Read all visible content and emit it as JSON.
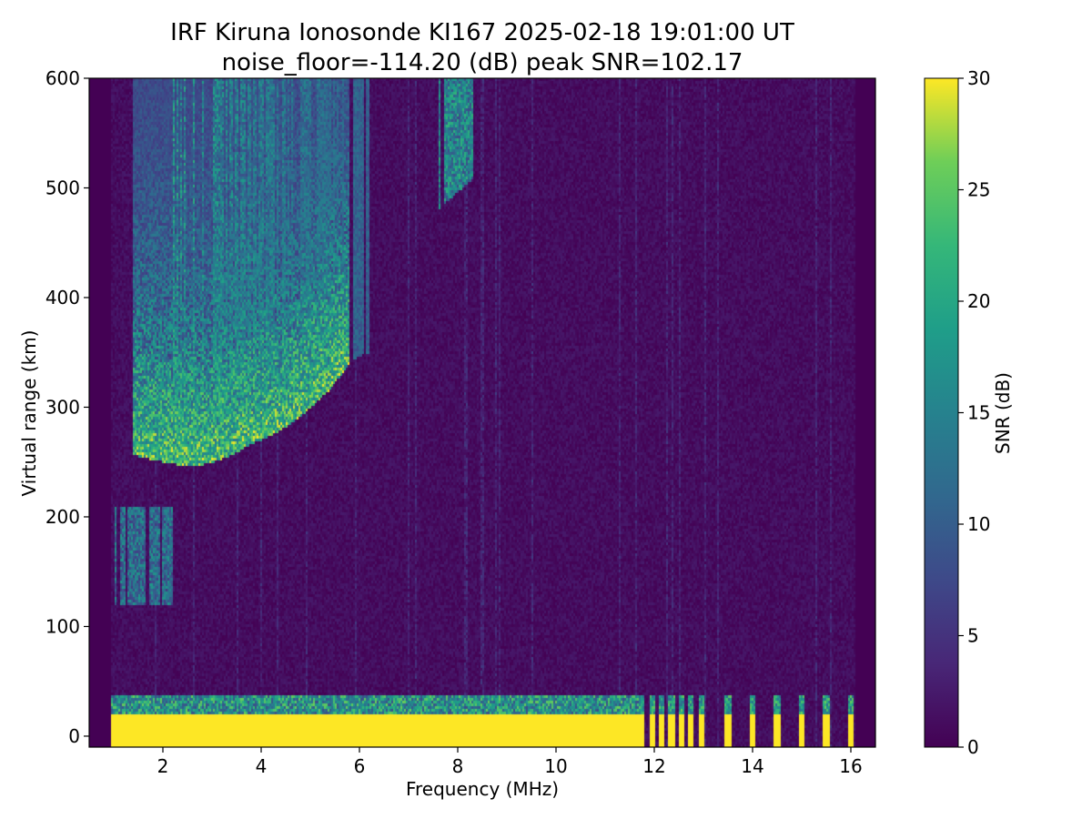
{
  "chart_data": {
    "type": "heatmap",
    "title": "IRF Kiruna Ionosonde KI167 2025-02-18 19:01:00  UT",
    "subtitle": "noise_floor=-114.20 (dB) peak SNR=102.17",
    "xlabel": "Frequency (MHz)",
    "ylabel": "Virtual range (km)",
    "xlim": [
      0.5,
      16.5
    ],
    "ylim": [
      -10,
      600
    ],
    "xticks": [
      2,
      4,
      6,
      8,
      10,
      12,
      14,
      16
    ],
    "yticks": [
      0,
      100,
      200,
      300,
      400,
      500,
      600
    ],
    "colorbar": {
      "label": "SNR (dB)",
      "colormap": "viridis",
      "range": [
        0,
        30
      ],
      "ticks": [
        0,
        5,
        10,
        15,
        20,
        25,
        30
      ]
    },
    "data_coverage_mhz": [
      0.95,
      16.1
    ],
    "features": {
      "ground_clutter": {
        "range_km": [
          -10,
          20
        ],
        "freq_mhz": [
          0.95,
          11.7
        ],
        "snr_db": 30
      },
      "ground_clutter_discrete": {
        "freq_mhz": [
          11.75,
          11.95,
          12.15,
          12.35,
          12.55,
          12.75,
          12.95,
          13.5,
          14.0,
          14.5,
          15.0,
          15.5,
          16.0
        ],
        "range_km": [
          -10,
          20
        ],
        "snr_db": 30
      },
      "f_trace_ridge": [
        {
          "f": 1.4,
          "r": 262
        },
        {
          "f": 1.8,
          "r": 258
        },
        {
          "f": 2.2,
          "r": 254
        },
        {
          "f": 2.6,
          "r": 252
        },
        {
          "f": 3.0,
          "r": 255
        },
        {
          "f": 3.4,
          "r": 262
        },
        {
          "f": 3.8,
          "r": 272
        },
        {
          "f": 4.2,
          "r": 280
        },
        {
          "f": 4.6,
          "r": 290
        },
        {
          "f": 5.0,
          "r": 305
        },
        {
          "f": 5.4,
          "r": 322
        },
        {
          "f": 5.8,
          "r": 345
        }
      ],
      "e_trace": {
        "freq_mhz": [
          1.0,
          2.2
        ],
        "range_km": [
          120,
          210
        ]
      },
      "echo_band_upper": {
        "freq_mhz": [
          2.2,
          6.2
        ],
        "range_km": [
          350,
          600
        ]
      },
      "echo_near_8mhz": {
        "freq_mhz": [
          7.6,
          8.3
        ],
        "range_km": [
          480,
          600
        ]
      }
    }
  }
}
